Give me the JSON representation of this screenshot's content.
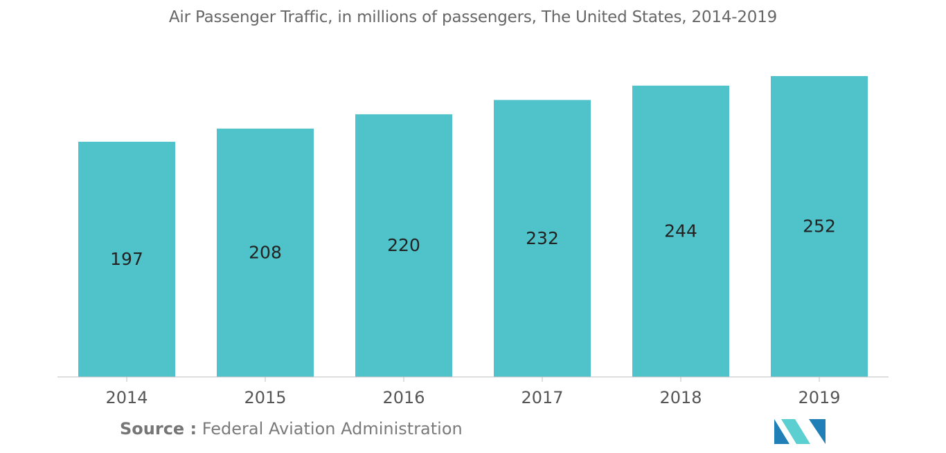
{
  "chart_data": {
    "type": "bar",
    "title": "Air Passenger Traffic, in millions of passengers, The United States, 2014-2019",
    "categories": [
      "2014",
      "2015",
      "2016",
      "2017",
      "2018",
      "2019"
    ],
    "values": [
      197,
      208,
      220,
      232,
      244,
      252
    ],
    "data_labels": [
      "197",
      "208",
      "220",
      "232",
      "244",
      "252"
    ],
    "xlabel": "",
    "ylabel": "",
    "ylim": [
      0,
      252
    ],
    "grid": false,
    "legend": "none",
    "bar_color": "#4fc3c9",
    "axis_color": "#bdbdbd"
  },
  "source": {
    "label": "Source :",
    "text": "Federal Aviation Administration"
  },
  "brand": {
    "logo_colors": [
      "#1f7fb6",
      "#5ccfd0"
    ]
  }
}
